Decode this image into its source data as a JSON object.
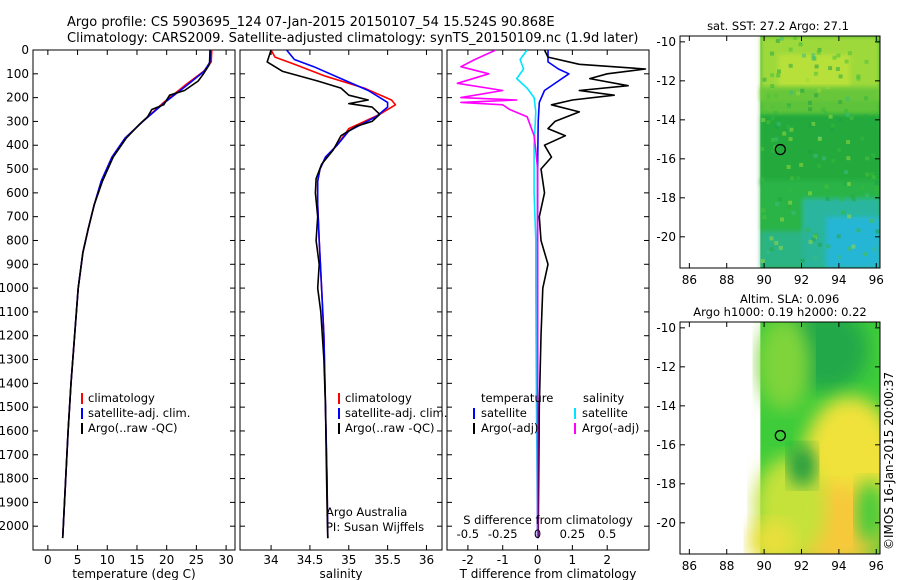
{
  "header": {
    "line1": "Argo profile: CS 5903695_124 07-Jan-2015 20150107_54 15.524S 90.868E",
    "line2": "Climatology: CARS2009. Satellite-adjusted climatology: synTS_20150109.nc (1.9d later)"
  },
  "colors": {
    "climatology": "#ff0000",
    "satellite": "#0000ff",
    "argo": "#000000",
    "sal_satellite": "#00e5ff",
    "sal_argo": "#ff00ff"
  },
  "chart_data": [
    {
      "type": "line",
      "id": "temperature",
      "xlabel": "temperature (deg C)",
      "ylabel": "",
      "xlim": [
        -2.5,
        31.5
      ],
      "ylim": [
        2100,
        0
      ],
      "xticks": [
        0,
        5,
        10,
        15,
        20,
        25,
        30
      ],
      "yticks": [
        0,
        100,
        200,
        300,
        400,
        500,
        600,
        700,
        800,
        900,
        1000,
        1100,
        1200,
        1300,
        1400,
        1500,
        1600,
        1700,
        1800,
        1900,
        2000
      ],
      "legend": [
        "climatology",
        "satellite-adj. clim.",
        "Argo(..raw -QC)"
      ],
      "series": [
        {
          "name": "climatology",
          "color": "#ff0000",
          "points": [
            [
              27.6,
              0
            ],
            [
              27.5,
              50
            ],
            [
              26.2,
              90
            ],
            [
              23,
              150
            ],
            [
              19.5,
              220
            ],
            [
              16,
              300
            ],
            [
              13,
              370
            ],
            [
              10.8,
              450
            ],
            [
              9,
              550
            ],
            [
              7.8,
              650
            ],
            [
              6.8,
              750
            ],
            [
              5.9,
              850
            ],
            [
              5.1,
              1000
            ],
            [
              4.5,
              1200
            ],
            [
              3.9,
              1400
            ],
            [
              3.4,
              1600
            ],
            [
              3.0,
              1800
            ],
            [
              2.7,
              1950
            ],
            [
              2.5,
              2050
            ]
          ]
        },
        {
          "name": "satellite-adj. clim.",
          "color": "#0000ff",
          "points": [
            [
              27.4,
              0
            ],
            [
              27.3,
              50
            ],
            [
              26.3,
              90
            ],
            [
              23.3,
              150
            ],
            [
              19.7,
              220
            ],
            [
              16,
              300
            ],
            [
              13,
              370
            ],
            [
              10.8,
              450
            ],
            [
              9,
              550
            ],
            [
              7.8,
              650
            ],
            [
              6.8,
              750
            ],
            [
              5.9,
              850
            ],
            [
              5.1,
              1000
            ],
            [
              4.5,
              1200
            ],
            [
              3.9,
              1400
            ],
            [
              3.4,
              1600
            ],
            [
              3.0,
              1800
            ],
            [
              2.7,
              1950
            ],
            [
              2.5,
              2050
            ]
          ]
        },
        {
          "name": "Argo(..raw -QC)",
          "color": "#000000",
          "points": [
            [
              27.3,
              0
            ],
            [
              27.2,
              60
            ],
            [
              26.2,
              100
            ],
            [
              25.3,
              130
            ],
            [
              23,
              170
            ],
            [
              20.5,
              190
            ],
            [
              19.5,
              230
            ],
            [
              17.5,
              250
            ],
            [
              16.8,
              280
            ],
            [
              15.5,
              310
            ],
            [
              13.2,
              370
            ],
            [
              11,
              450
            ],
            [
              9.2,
              550
            ],
            [
              7.8,
              650
            ],
            [
              6.8,
              750
            ],
            [
              5.9,
              850
            ],
            [
              5.1,
              1000
            ],
            [
              4.5,
              1200
            ],
            [
              3.9,
              1400
            ],
            [
              3.4,
              1600
            ],
            [
              3.0,
              1800
            ],
            [
              2.7,
              1950
            ],
            [
              2.5,
              2050
            ]
          ]
        }
      ]
    },
    {
      "type": "line",
      "id": "salinity",
      "xlabel": "salinity",
      "ylabel": "",
      "xlim": [
        33.6,
        36.2
      ],
      "ylim": [
        2100,
        0
      ],
      "xticks": [
        34,
        34.5,
        35,
        35.5,
        36
      ],
      "legend": [
        "climatology",
        "satellite-adj. clim.",
        "Argo(..raw -QC)"
      ],
      "annotation": [
        "Argo Australia",
        "PI: Susan Wijffels"
      ],
      "series": [
        {
          "name": "climatology",
          "color": "#ff0000",
          "points": [
            [
              34.0,
              0
            ],
            [
              34.05,
              30
            ],
            [
              34.3,
              60
            ],
            [
              34.7,
              110
            ],
            [
              35.2,
              160
            ],
            [
              35.55,
              210
            ],
            [
              35.6,
              230
            ],
            [
              35.4,
              270
            ],
            [
              35.0,
              330
            ],
            [
              34.85,
              400
            ],
            [
              34.7,
              450
            ],
            [
              34.63,
              500
            ],
            [
              34.6,
              550
            ],
            [
              34.6,
              650
            ],
            [
              34.62,
              800
            ],
            [
              34.65,
              1000
            ],
            [
              34.68,
              1200
            ],
            [
              34.7,
              1500
            ],
            [
              34.72,
              1800
            ],
            [
              34.73,
              2050
            ]
          ]
        },
        {
          "name": "satellite-adj. clim.",
          "color": "#0000ff",
          "points": [
            [
              34.2,
              0
            ],
            [
              34.3,
              40
            ],
            [
              34.55,
              70
            ],
            [
              34.9,
              120
            ],
            [
              35.25,
              170
            ],
            [
              35.5,
              220
            ],
            [
              35.5,
              240
            ],
            [
              35.35,
              280
            ],
            [
              35.0,
              340
            ],
            [
              34.85,
              400
            ],
            [
              34.7,
              450
            ],
            [
              34.63,
              500
            ],
            [
              34.6,
              550
            ],
            [
              34.6,
              650
            ],
            [
              34.62,
              800
            ],
            [
              34.65,
              1000
            ],
            [
              34.68,
              1200
            ],
            [
              34.7,
              1500
            ],
            [
              34.72,
              1800
            ],
            [
              34.73,
              2050
            ]
          ]
        },
        {
          "name": "Argo(..raw -QC)",
          "color": "#000000",
          "points": [
            [
              34.0,
              0
            ],
            [
              33.95,
              50
            ],
            [
              34.15,
              90
            ],
            [
              34.6,
              130
            ],
            [
              34.9,
              160
            ],
            [
              35.0,
              190
            ],
            [
              35.25,
              210
            ],
            [
              35.0,
              225
            ],
            [
              35.3,
              240
            ],
            [
              35.4,
              270
            ],
            [
              35.3,
              300
            ],
            [
              35.1,
              320
            ],
            [
              34.9,
              360
            ],
            [
              34.8,
              420
            ],
            [
              34.65,
              480
            ],
            [
              34.58,
              540
            ],
            [
              34.57,
              600
            ],
            [
              34.6,
              700
            ],
            [
              34.58,
              800
            ],
            [
              34.62,
              900
            ],
            [
              34.6,
              1000
            ],
            [
              34.64,
              1100
            ],
            [
              34.68,
              1300
            ],
            [
              34.7,
              1500
            ],
            [
              34.71,
              1700
            ],
            [
              34.72,
              1900
            ],
            [
              34.73,
              2050
            ]
          ]
        }
      ]
    },
    {
      "type": "line",
      "id": "difference",
      "xlabel": "T difference from climatology",
      "toplabel": "S difference from climatology",
      "ylabel": "",
      "xlim": [
        -2.6,
        3.2
      ],
      "ylim": [
        2100,
        0
      ],
      "xticks": [
        -2,
        -1,
        0,
        1,
        2
      ],
      "sticks_labels": [
        "-0.5",
        "-0.25",
        "0",
        "0.25",
        "0.5"
      ],
      "sticks_at": [
        -2,
        -1,
        0,
        1,
        2
      ],
      "legend": {
        "temperature": [
          "satellite",
          "Argo(-adj)"
        ],
        "salinity": [
          "satellite",
          "Argo(-adj)"
        ],
        "temperature_title": "temperature",
        "salinity_title": "salinity"
      },
      "series": [
        {
          "name": "temperature satellite",
          "color": "#0000ff",
          "points": [
            [
              0.3,
              0
            ],
            [
              0.3,
              50
            ],
            [
              0.6,
              80
            ],
            [
              0.9,
              100
            ],
            [
              0.6,
              130
            ],
            [
              0.2,
              170
            ],
            [
              0.05,
              220
            ],
            [
              0.02,
              300
            ],
            [
              0.0,
              500
            ],
            [
              0.0,
              1000
            ],
            [
              0.0,
              1500
            ],
            [
              0.0,
              2050
            ]
          ]
        },
        {
          "name": "temperature Argo(-adj)",
          "color": "#000000",
          "points": [
            [
              0.2,
              0
            ],
            [
              0.3,
              30
            ],
            [
              1.2,
              60
            ],
            [
              3.1,
              80
            ],
            [
              2.0,
              100
            ],
            [
              1.5,
              120
            ],
            [
              2.6,
              150
            ],
            [
              1.2,
              170
            ],
            [
              2.2,
              190
            ],
            [
              1.0,
              210
            ],
            [
              0.4,
              230
            ],
            [
              1.2,
              260
            ],
            [
              0.5,
              300
            ],
            [
              0.3,
              330
            ],
            [
              0.8,
              360
            ],
            [
              0.2,
              400
            ],
            [
              0.4,
              450
            ],
            [
              0.1,
              500
            ],
            [
              0.2,
              600
            ],
            [
              0.05,
              700
            ],
            [
              0.1,
              800
            ],
            [
              0.3,
              900
            ],
            [
              0.15,
              1000
            ],
            [
              0.1,
              1200
            ],
            [
              0.05,
              1500
            ],
            [
              0.02,
              2050
            ]
          ]
        },
        {
          "name": "salinity satellite",
          "color": "#00e5ff",
          "points": [
            [
              -0.3,
              0
            ],
            [
              -0.5,
              40
            ],
            [
              -0.4,
              80
            ],
            [
              -0.6,
              120
            ],
            [
              -0.3,
              160
            ],
            [
              -0.1,
              200
            ],
            [
              -0.05,
              260
            ],
            [
              -0.1,
              400
            ],
            [
              -0.1,
              600
            ],
            [
              -0.05,
              800
            ],
            [
              -0.05,
              1000
            ],
            [
              -0.03,
              1500
            ],
            [
              0.0,
              2050
            ]
          ]
        },
        {
          "name": "salinity Argo(-adj)",
          "color": "#ff00ff",
          "points": [
            [
              -1.2,
              0
            ],
            [
              -1.8,
              40
            ],
            [
              -2.2,
              70
            ],
            [
              -1.4,
              100
            ],
            [
              -2.3,
              140
            ],
            [
              -1.0,
              170
            ],
            [
              -2.2,
              200
            ],
            [
              -0.6,
              210
            ],
            [
              -2.2,
              220
            ],
            [
              -1.0,
              230
            ],
            [
              -0.8,
              250
            ],
            [
              -0.3,
              280
            ],
            [
              -0.2,
              320
            ],
            [
              -0.1,
              360
            ],
            [
              -0.05,
              420
            ],
            [
              0.0,
              500
            ],
            [
              0.0,
              1000
            ],
            [
              0.0,
              2050
            ]
          ]
        }
      ]
    },
    {
      "type": "heatmap",
      "id": "sst-map",
      "title": "sat. SST: 27.2 Argo: 27.1",
      "xlim": [
        85.5,
        96.2
      ],
      "ylim": [
        -21.6,
        -9.7
      ],
      "xticks": [
        86,
        88,
        90,
        92,
        94,
        96
      ],
      "yticks": [
        -10,
        -12,
        -14,
        -16,
        -18,
        -20
      ],
      "data_xlim": [
        89.8,
        96.2
      ],
      "marker": [
        90.868,
        -15.524
      ]
    },
    {
      "type": "heatmap",
      "id": "sla-map",
      "title": [
        "Altim. SLA: 0.096",
        "Argo h1000: 0.19 h2000: 0.22"
      ],
      "xlim": [
        85.5,
        96.2
      ],
      "ylim": [
        -21.6,
        -9.7
      ],
      "xticks": [
        86,
        88,
        90,
        92,
        94,
        96
      ],
      "yticks": [
        -10,
        -12,
        -14,
        -16,
        -18,
        -20
      ],
      "data_xlim": [
        89.8,
        96.2
      ],
      "marker": [
        90.868,
        -15.524
      ]
    }
  ],
  "footer": {
    "credit": "©IMOS 16-Jan-2015 20:00:37"
  }
}
